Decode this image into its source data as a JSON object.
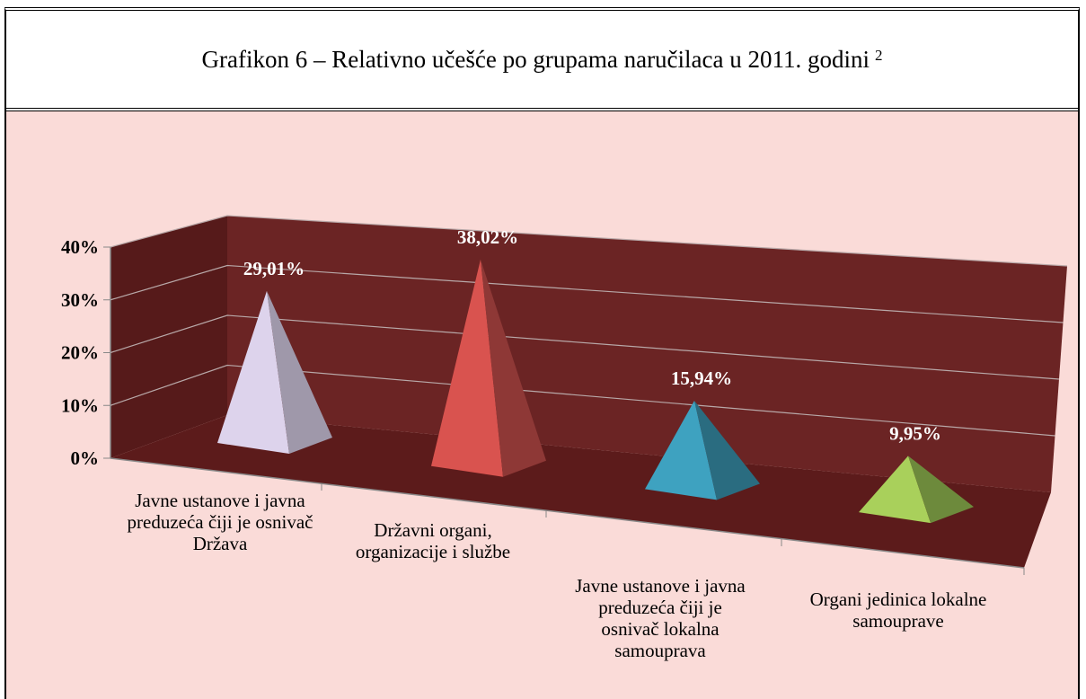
{
  "chart_data": {
    "type": "pyramid3d",
    "title": "Grafikon 6 – Relativno učešće po grupama naručilaca u 2011. godini",
    "title_note": "2",
    "categories": [
      "Javne ustanove i javna preduzeća čiji je osnivač Država",
      "Državni organi, organizacije i službe",
      "Javne ustanove i javna preduzeća čiji je osnivač lokalna samouprava",
      "Organi jedinica lokalne samouprave"
    ],
    "values": [
      29.01,
      38.02,
      15.94,
      9.95
    ],
    "value_labels": [
      "29,01%",
      "38,02%",
      "15,94%",
      "9,95%"
    ],
    "colors": [
      [
        "#ddd3ec",
        "#9f98aa"
      ],
      [
        "#d9534f",
        "#8e3836"
      ],
      [
        "#3ea2c0",
        "#2a6c80"
      ],
      [
        "#a9d05b",
        "#6d8a3c"
      ]
    ],
    "ylim": [
      0,
      40
    ],
    "yticks": [
      {
        "value": 0,
        "label": "0%"
      },
      {
        "value": 10,
        "label": "10%"
      },
      {
        "value": 20,
        "label": "20%"
      },
      {
        "value": 30,
        "label": "30%"
      },
      {
        "value": 40,
        "label": "40%"
      }
    ],
    "grid": true
  }
}
